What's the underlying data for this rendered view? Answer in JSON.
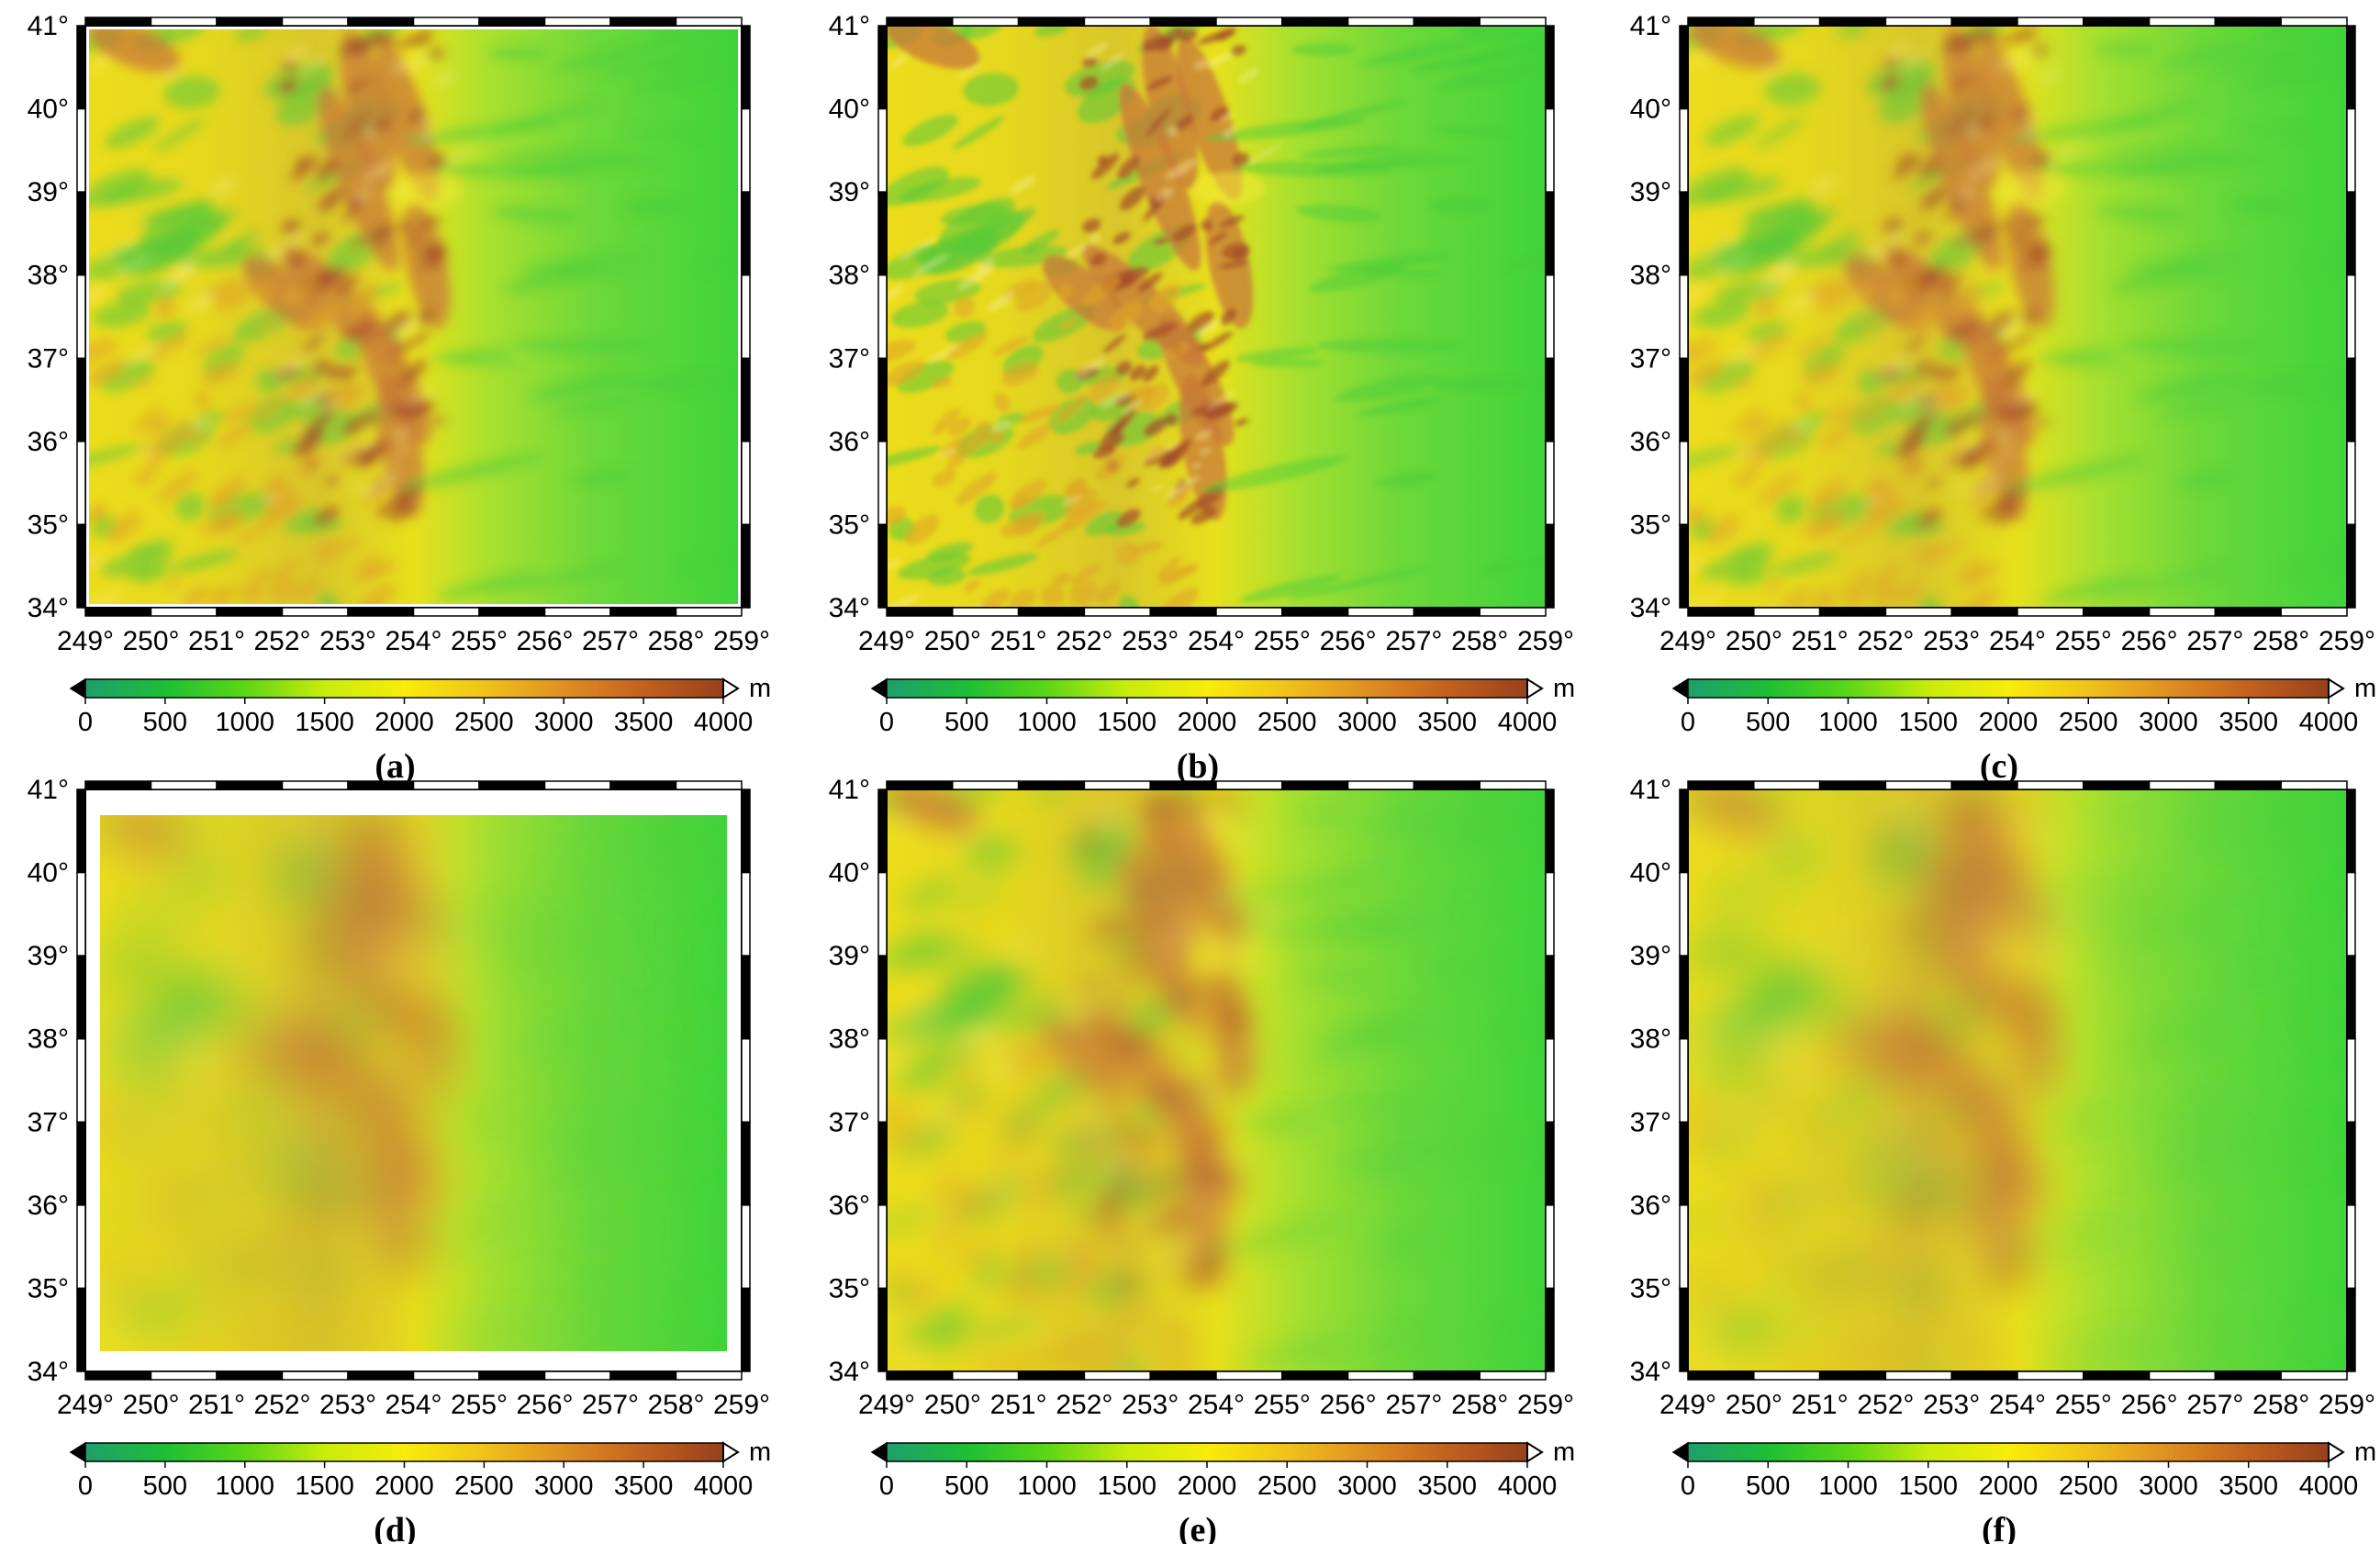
{
  "figure": {
    "lat_labels": [
      "41°",
      "40°",
      "39°",
      "38°",
      "37°",
      "36°",
      "35°",
      "34°"
    ],
    "lon_labels": [
      "249°",
      "250°",
      "251°",
      "252°",
      "253°",
      "254°",
      "255°",
      "256°",
      "257°",
      "258°",
      "259°"
    ],
    "colorbar": {
      "ticks": [
        "0",
        "500",
        "1000",
        "1500",
        "2000",
        "2500",
        "3000",
        "3500",
        "4000"
      ],
      "unit": "m",
      "min": 0,
      "max": 4000,
      "colors": [
        "#1f9e6e",
        "#1dbf35",
        "#5cd616",
        "#c8ec0c",
        "#f8ec0a",
        "#f0c21a",
        "#df8f22",
        "#c2611f",
        "#98401c"
      ]
    },
    "relief_colors": {
      "low": "#3fd43a",
      "mid": "#eddc1c",
      "high": "#c87838",
      "peak": "#a44c2a"
    },
    "panels": [
      {
        "label": "(a)",
        "style": "sharp"
      },
      {
        "label": "(b)",
        "style": "detailed"
      },
      {
        "label": "(c)",
        "style": "bumpy"
      },
      {
        "label": "(d)",
        "style": "blurred-inset"
      },
      {
        "label": "(e)",
        "style": "streaked"
      },
      {
        "label": "(f)",
        "style": "very-smooth"
      }
    ]
  }
}
